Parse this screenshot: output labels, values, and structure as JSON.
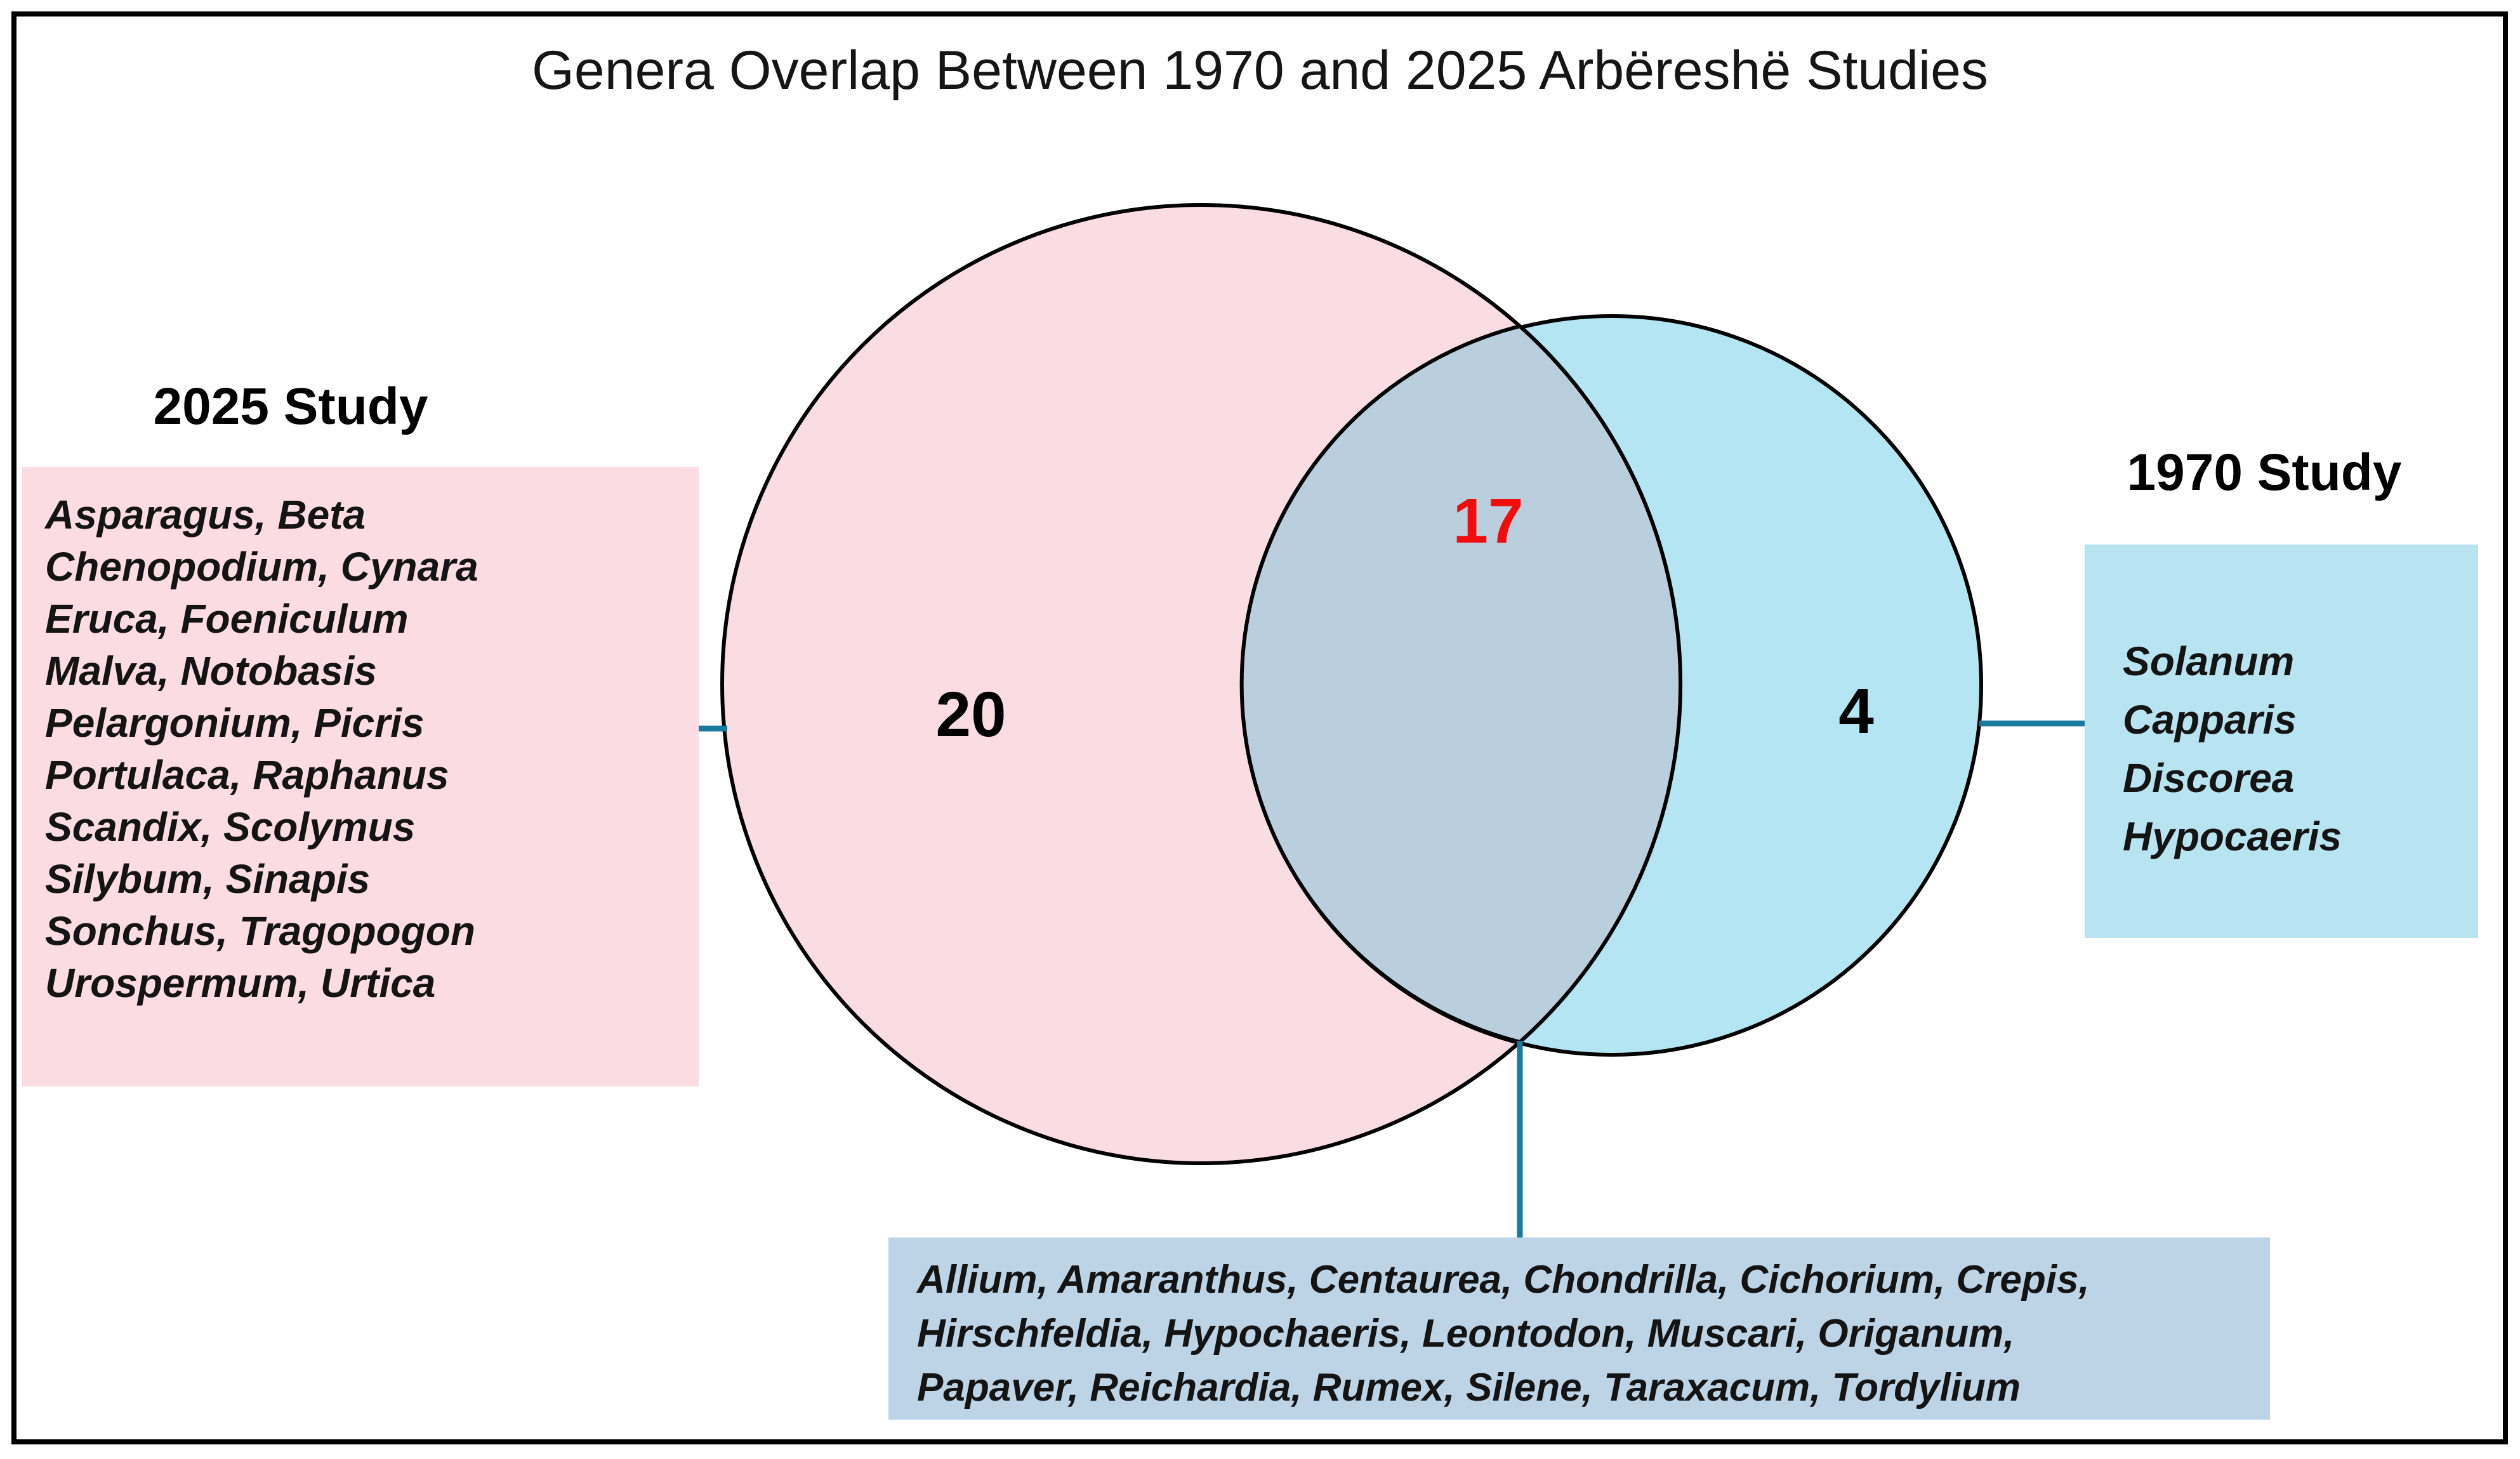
{
  "title": "Genera Overlap Between 1970 and 2025 Arbëreshë Studies",
  "venn": {
    "left_count": "20",
    "overlap_count": "17",
    "right_count": "4"
  },
  "left_panel": {
    "heading": "2025 Study",
    "lines": [
      "Asparagus, Beta",
      "Chenopodium, Cynara",
      "Eruca, Foeniculum",
      "Malva, Notobasis",
      "Pelargonium, Picris",
      "Portulaca, Raphanus",
      "Scandix, Scolymus",
      "Silybum, Sinapis",
      "Sonchus, Tragopogon",
      "Urospermum, Urtica"
    ]
  },
  "right_panel": {
    "heading": "1970 Study",
    "lines": [
      "Solanum",
      "Capparis",
      "Discorea",
      "Hypocaeris"
    ]
  },
  "overlap_panel": {
    "lines": [
      "Allium, Amaranthus, Centaurea, Chondrilla, Cichorium, Crepis,",
      "Hirschfeldia, Hypochaeris, Leontodon, Muscari, Origanum,",
      "Papaver, Reichardia, Rumex, Silene, Taraxacum, Tordylium"
    ]
  },
  "colors": {
    "pink_circle": "#fadce3",
    "blue_circle": "#b3e5f2",
    "overlap_region": "#b9cfdd",
    "pink_box": "#fbdce2",
    "blue_box": "#b8e3f0",
    "overlap_box": "#bdd3e6",
    "connector": "#1a7a9d",
    "overlap_count_red": "#f20c0c",
    "outline": "#000000"
  }
}
